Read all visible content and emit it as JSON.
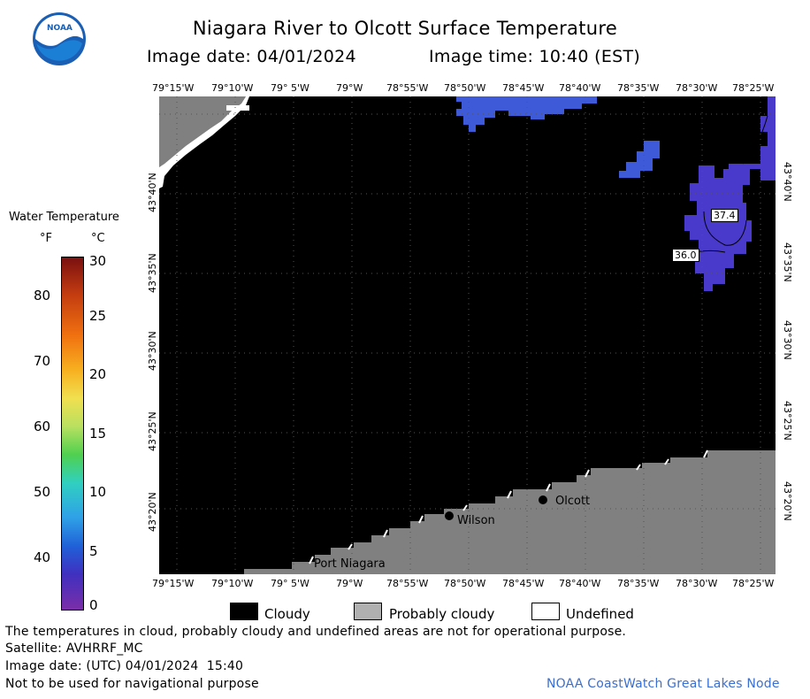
{
  "logo_text": "NOAA",
  "title": "Niagara River to Olcott Surface Temperature",
  "image_date_label": "Image date: 04/01/2024",
  "image_time_label": "Image time: 10:40 (EST)",
  "lon_labels": [
    "79°15'W",
    "79°10'W",
    "79° 5'W",
    "79°W",
    "78°55'W",
    "78°50'W",
    "78°45'W",
    "78°40'W",
    "78°35'W",
    "78°30'W",
    "78°25'W"
  ],
  "lat_labels": [
    "43°40'N",
    "43°35'N",
    "43°30'N",
    "43°25'N",
    "43°20'N"
  ],
  "legend": {
    "title": "Water Temperature",
    "unit_f": "°F",
    "unit_c": "°C",
    "f_ticks": [
      "80",
      "70",
      "60",
      "50",
      "40"
    ],
    "c_ticks": [
      "30",
      "25",
      "20",
      "15",
      "10",
      "5",
      "0"
    ]
  },
  "contour_labels": [
    "37.4",
    "36.0"
  ],
  "places": [
    "Olcott",
    "Wilson",
    "Port Niagara"
  ],
  "key": {
    "cloudy": "Cloudy",
    "probably_cloudy": "Probably cloudy",
    "undefined": "Undefined"
  },
  "footer": {
    "disclaimer": "The temperatures in cloud, probably cloudy and undefined areas are not for operational purpose.",
    "satellite": "Satellite: AVHRRF_MC",
    "utc_date": "Image date: (UTC) 04/01/2024  15:40",
    "nav": "Not to be used for navigational purpose",
    "credit": "NOAA CoastWatch Great Lakes Node"
  },
  "colors": {
    "cloud": "#000000",
    "land": "#808080",
    "water_cold": "#4a3acb",
    "water_mid": "#3f5ad8"
  }
}
